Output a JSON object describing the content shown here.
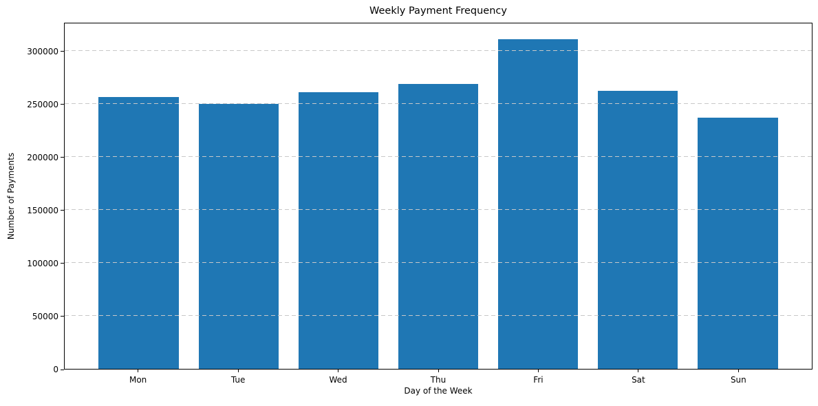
{
  "chart_data": {
    "type": "bar",
    "title": "Weekly Payment Frequency",
    "xlabel": "Day of the Week",
    "ylabel": "Number of Payments",
    "categories": [
      "Mon",
      "Tue",
      "Wed",
      "Thu",
      "Fri",
      "Sat",
      "Sun"
    ],
    "values": [
      257500,
      250500,
      262000,
      269500,
      312000,
      263000,
      238000
    ],
    "yticks": [
      0,
      50000,
      100000,
      150000,
      200000,
      250000,
      300000
    ],
    "ytick_labels": [
      "0",
      "50000",
      "100000",
      "150000",
      "200000",
      "250000",
      "300000"
    ],
    "ylim": [
      0,
      327000
    ],
    "bar_color": "#1f77b4",
    "grid": "horizontal-dashed",
    "grid_color": "#c8c8c8",
    "axis_color": "#000000",
    "legend": "none"
  }
}
